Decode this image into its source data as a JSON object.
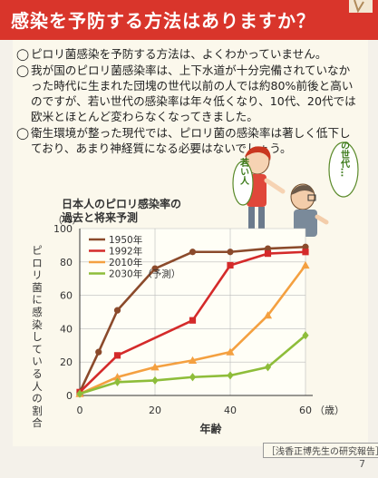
{
  "header": {
    "title": "感染を予防する方法はありますか？",
    "color": "#d9352b"
  },
  "bullets": [
    {
      "mark": "◯",
      "text": "ピロリ菌感染を予防する方法は、よくわかっていません。"
    },
    {
      "mark": "◯",
      "text": "我が国のピロリ菌感染率は、上下水道が十分完備されていなかった時代に生まれた団塊の世代以前の人では約80%前後と高いのですが、若い世代の感染率は年々低くなり、10代、20代では欧米とほとんど変わらなくなってきました。"
    },
    {
      "mark": "◯",
      "text": "衛生環境が整った現代では、ピロリ菌の感染率は著しく低下しており、あまり神経質になる必要はないでしょう。"
    }
  ],
  "illustration": {
    "young_label": "若い人",
    "dankai_label": "団塊の世代…"
  },
  "chart_data": {
    "type": "line",
    "title": "日本人のピロリ感染率の過去と将来予測",
    "xlabel": "年齢",
    "x_unit": "（歳）",
    "ylabel": "ピロリ菌に感染している人の割合",
    "y_unit": "（%）",
    "xlim": [
      0,
      60
    ],
    "ylim": [
      0,
      100
    ],
    "x_ticks": [
      0,
      20,
      40,
      60
    ],
    "y_ticks": [
      0,
      20,
      40,
      60,
      80,
      100
    ],
    "grid": true,
    "legend_position": "top-left",
    "series": [
      {
        "name": "1950年",
        "color": "#8b4a2b",
        "marker": "circle",
        "x": [
          0,
          5,
          10,
          20,
          30,
          40,
          50,
          60
        ],
        "values": [
          2,
          26,
          51,
          76,
          86,
          86,
          88,
          89
        ]
      },
      {
        "name": "1992年",
        "color": "#d42a2a",
        "marker": "square",
        "x": [
          0,
          10,
          30,
          40,
          50,
          60
        ],
        "values": [
          2,
          24,
          45,
          78,
          85,
          86
        ]
      },
      {
        "name": "2010年",
        "color": "#f4a040",
        "marker": "triangle",
        "x": [
          0,
          10,
          20,
          30,
          40,
          50,
          60
        ],
        "values": [
          1,
          11,
          17,
          21,
          26,
          48,
          78
        ]
      },
      {
        "name": "2030年（予測）",
        "color": "#8ebd3a",
        "marker": "diamond",
        "x": [
          0,
          10,
          20,
          30,
          40,
          50,
          60
        ],
        "values": [
          1,
          8,
          9,
          11,
          12,
          17,
          36
        ]
      }
    ]
  },
  "source": "浅香正博先生の研究報告",
  "page_number": "7"
}
